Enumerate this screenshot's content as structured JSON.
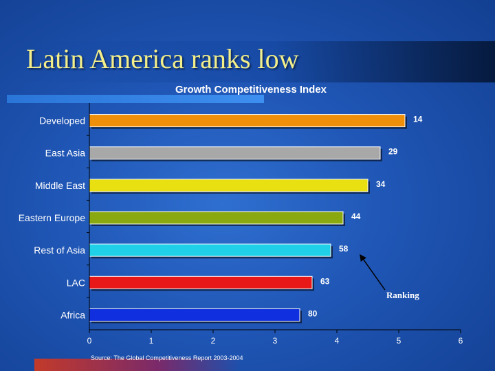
{
  "slide": {
    "title": "Latin America ranks low",
    "source": "Source: The Global Competitiveness Report 2003-2004"
  },
  "colors": {
    "title_text": "#f2ee8a",
    "background": "#1f55b4"
  },
  "chart_data": {
    "type": "bar",
    "orientation": "horizontal",
    "title": "Growth Competitiveness Index",
    "categories": [
      "Developed",
      "East Asia",
      "Middle East",
      "Eastern Europe",
      "Rest of Asia",
      "LAC",
      "Africa"
    ],
    "values": [
      5.1,
      4.7,
      4.5,
      4.1,
      3.9,
      3.6,
      3.4
    ],
    "data_labels": [
      "14",
      "29",
      "34",
      "44",
      "58",
      "63",
      "80"
    ],
    "bar_colors": [
      "#f0900a",
      "#a8a8a8",
      "#e8e010",
      "#8aa810",
      "#20d0e8",
      "#e81818",
      "#1030e0"
    ],
    "xlim": [
      0,
      6
    ],
    "xticks": [
      "0",
      "1",
      "2",
      "3",
      "4",
      "5",
      "6"
    ],
    "annotation": "Ranking",
    "grid": false
  }
}
